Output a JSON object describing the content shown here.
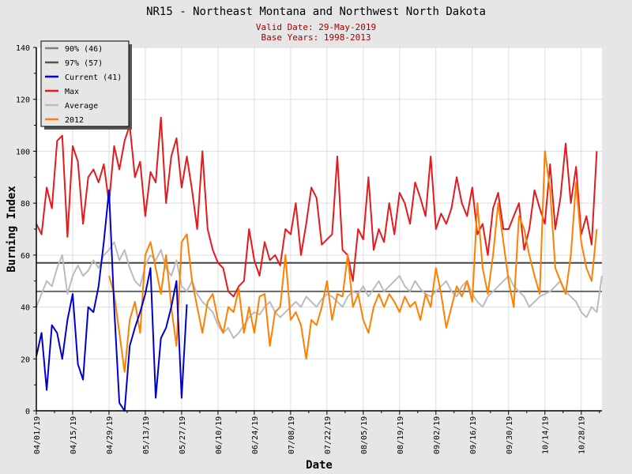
{
  "chart_data": {
    "type": "line",
    "title": "NR15 - Northeast Montana and Northwest North Dakota",
    "subtitle_lines": [
      "Valid Date: 29-May-2019",
      "Base Years: 1998-2013"
    ],
    "xlabel": "Date",
    "ylabel": "Burning Index",
    "ylim": [
      0,
      140
    ],
    "yticks": [
      0,
      20,
      40,
      60,
      80,
      100,
      120,
      140
    ],
    "xlim_days": [
      0,
      218
    ],
    "x_start_date": "04/01/19",
    "xticks": [
      {
        "day": 0,
        "label": "04/01/19"
      },
      {
        "day": 14,
        "label": "04/15/19"
      },
      {
        "day": 28,
        "label": "04/29/19"
      },
      {
        "day": 42,
        "label": "05/13/19"
      },
      {
        "day": 56,
        "label": "05/27/19"
      },
      {
        "day": 70,
        "label": "06/10/19"
      },
      {
        "day": 84,
        "label": "06/24/19"
      },
      {
        "day": 98,
        "label": "07/08/19"
      },
      {
        "day": 112,
        "label": "07/22/19"
      },
      {
        "day": 126,
        "label": "08/05/19"
      },
      {
        "day": 140,
        "label": "08/19/19"
      },
      {
        "day": 154,
        "label": "09/02/19"
      },
      {
        "day": 168,
        "label": "09/16/19"
      },
      {
        "day": 182,
        "label": "09/30/19"
      },
      {
        "day": 196,
        "label": "10/14/19"
      },
      {
        "day": 210,
        "label": "10/28/19"
      }
    ],
    "grid": true,
    "legend_placement": "top-left",
    "thresholds": [
      {
        "name": "90% (46)",
        "value": 46,
        "color": "#666666"
      },
      {
        "name": "97% (57)",
        "value": 57,
        "color": "#444444"
      }
    ],
    "series": [
      {
        "name": "Average",
        "color": "#bbbbbb",
        "start_day": 0,
        "step_days": 2,
        "values": [
          40,
          45,
          50,
          48,
          55,
          60,
          45,
          52,
          56,
          52,
          54,
          58,
          55,
          60,
          62,
          65,
          58,
          62,
          55,
          50,
          48,
          56,
          60,
          58,
          62,
          55,
          52,
          58,
          48,
          46,
          50,
          45,
          42,
          40,
          38,
          33,
          30,
          32,
          28,
          30,
          33,
          36,
          38,
          37,
          40,
          42,
          38,
          36,
          38,
          40,
          42,
          40,
          44,
          42,
          40,
          43,
          45,
          44,
          42,
          40,
          44,
          46,
          45,
          48,
          44,
          47,
          50,
          46,
          48,
          50,
          52,
          48,
          46,
          50,
          47,
          45,
          44,
          46,
          48,
          50,
          46,
          44,
          48,
          50,
          45,
          42,
          40,
          44,
          46,
          48,
          50,
          52,
          48,
          46,
          44,
          40,
          42,
          44,
          45,
          46,
          48,
          50,
          46,
          44,
          42,
          38,
          36,
          40,
          38,
          52
        ]
      },
      {
        "name": "Max",
        "color": "#e41a1c",
        "start_day": 0,
        "step_days": 2,
        "values": [
          72,
          68,
          86,
          78,
          104,
          106,
          67,
          102,
          96,
          72,
          90,
          93,
          88,
          95,
          80,
          102,
          93,
          104,
          110,
          90,
          96,
          75,
          92,
          88,
          113,
          80,
          98,
          105,
          86,
          98,
          85,
          70,
          100,
          70,
          62,
          57,
          55,
          46,
          44,
          48,
          50,
          70,
          58,
          52,
          65,
          58,
          60,
          56,
          70,
          68,
          80,
          60,
          72,
          86,
          82,
          64,
          66,
          68,
          98,
          62,
          60,
          50,
          70,
          66,
          90,
          62,
          70,
          65,
          80,
          68,
          84,
          80,
          72,
          88,
          82,
          75,
          98,
          70,
          76,
          72,
          78,
          90,
          80,
          75,
          86,
          68,
          72,
          60,
          78,
          84,
          70,
          70,
          75,
          80,
          62,
          70,
          85,
          78,
          72,
          95,
          70,
          82,
          103,
          80,
          94,
          68,
          75,
          64,
          100
        ]
      },
      {
        "name": "2012",
        "color": "#ff8000",
        "start_day": 28,
        "step_days": 2,
        "values": [
          52,
          45,
          30,
          15,
          35,
          42,
          30,
          60,
          65,
          55,
          45,
          60,
          40,
          25,
          65,
          68,
          50,
          40,
          30,
          42,
          45,
          35,
          30,
          40,
          38,
          47,
          30,
          40,
          30,
          44,
          45,
          25,
          38,
          40,
          60,
          35,
          38,
          33,
          20,
          35,
          33,
          40,
          50,
          35,
          45,
          44,
          60,
          40,
          45,
          35,
          30,
          40,
          45,
          40,
          45,
          42,
          38,
          44,
          40,
          42,
          35,
          45,
          40,
          55,
          45,
          32,
          40,
          48,
          44,
          50,
          42,
          80,
          55,
          45,
          60,
          80,
          65,
          50,
          40,
          75,
          70,
          60,
          52,
          45,
          100,
          85,
          55,
          50,
          45,
          60,
          88,
          65,
          55,
          50,
          70
        ]
      },
      {
        "name": "Current (41)",
        "color": "#0000cc",
        "start_day": 0,
        "step_days": 2,
        "values": [
          21,
          30,
          8,
          33,
          30,
          20,
          35,
          45,
          18,
          12,
          40,
          38,
          48,
          65,
          85,
          40,
          3,
          0,
          25,
          32,
          38,
          45,
          55,
          5,
          28,
          32,
          40,
          50,
          5,
          41
        ]
      }
    ],
    "legend": [
      {
        "label": "90% (46)",
        "color": "#808080"
      },
      {
        "label": "97% (57)",
        "color": "#555555"
      },
      {
        "label": "Current (41)",
        "color": "#0000cc"
      },
      {
        "label": "Max",
        "color": "#e41a1c"
      },
      {
        "label": "Average",
        "color": "#bbbbbb"
      },
      {
        "label": "2012",
        "color": "#ff8000"
      }
    ]
  }
}
